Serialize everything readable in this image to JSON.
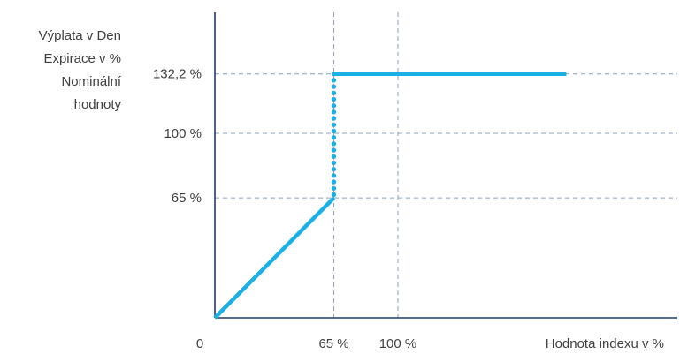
{
  "chart_data": {
    "type": "line",
    "ylabel_lines": [
      "Výplata v Den",
      "Expirace v %",
      "Nominální",
      "hodnoty"
    ],
    "xlabel": "Hodnota indexu v %",
    "origin_label": "0",
    "x_ticks": [
      {
        "value": 65,
        "label": "65 %"
      },
      {
        "value": 100,
        "label": "100 %"
      }
    ],
    "y_ticks": [
      {
        "value": 65,
        "label": "65 %"
      },
      {
        "value": 100,
        "label": "100 %"
      },
      {
        "value": 132.2,
        "label": "132,2 %"
      }
    ],
    "xlim": [
      0,
      188
    ],
    "ylim": [
      0,
      168
    ],
    "grid": "dashed",
    "series": [
      {
        "style": "solid",
        "points": [
          [
            0,
            0
          ],
          [
            65,
            65
          ]
        ]
      },
      {
        "style": "dotted",
        "points": [
          [
            65,
            65
          ],
          [
            65,
            132.2
          ]
        ]
      },
      {
        "style": "solid",
        "points": [
          [
            65,
            132.2
          ],
          [
            192,
            132.2
          ]
        ]
      }
    ],
    "line_color": "#1ab0e6",
    "axis_color": "#1f3b6e",
    "grid_color": "#8aa0be"
  }
}
